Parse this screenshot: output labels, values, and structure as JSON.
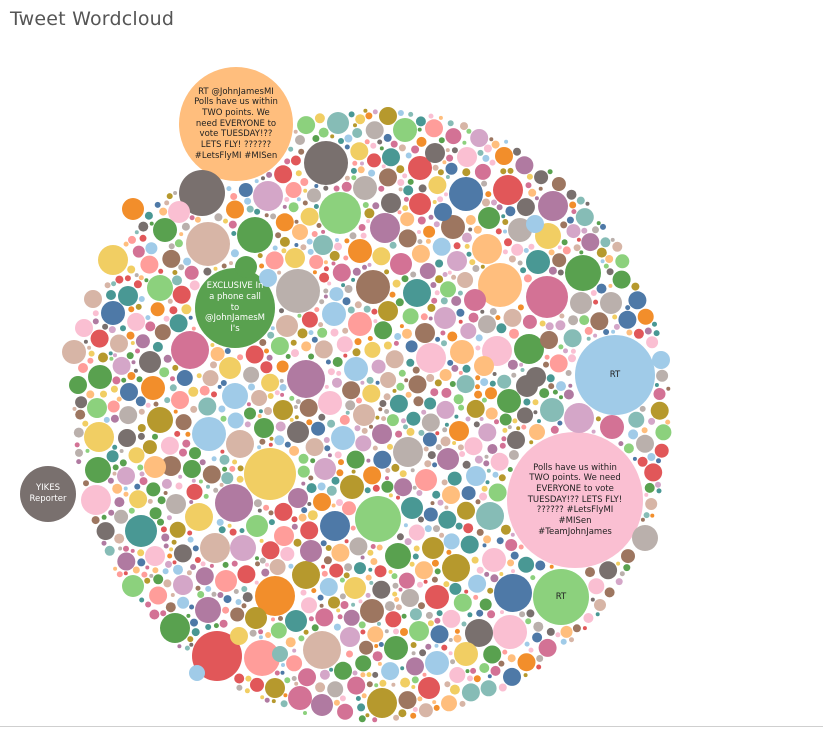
{
  "title": "Tweet Wordcloud",
  "chart_data": {
    "type": "bubble",
    "labeled_bubbles": [
      {
        "text": "RT @JohnJamesMI Polls have us within TWO points. We need EVERYONE to vote TUESDAY!?? LETS FLY! ?????? #LetsFlyMI #MISen",
        "color": "#ffbe7d"
      },
      {
        "text": "EXCLUSIVE In a phone call to @JohnJamesMI's",
        "color": "#59a14f"
      },
      {
        "text": "RT",
        "color": "#a0cbe8"
      },
      {
        "text": "Polls have us within TWO points. We need EVERYONE to vote TUESDAY!?? LETS FLY! ?????? #LetsFlyMI #MISen #TeamJohnJames",
        "color": "#fabfd2"
      },
      {
        "text": "RT",
        "color": "#8cd17d"
      },
      {
        "text": "YIKES Reporter",
        "color": "#79706e"
      }
    ],
    "palette": [
      "#4e79a7",
      "#a0cbe8",
      "#f28e2b",
      "#ffbe7d",
      "#59a14f",
      "#8cd17d",
      "#b6992d",
      "#f1ce63",
      "#499894",
      "#86bcb6",
      "#e15759",
      "#ff9d9a",
      "#79706e",
      "#bab0ac",
      "#d37295",
      "#fabfd2",
      "#b07aa1",
      "#d4a6c8",
      "#9d7660",
      "#d7b5a6"
    ]
  }
}
